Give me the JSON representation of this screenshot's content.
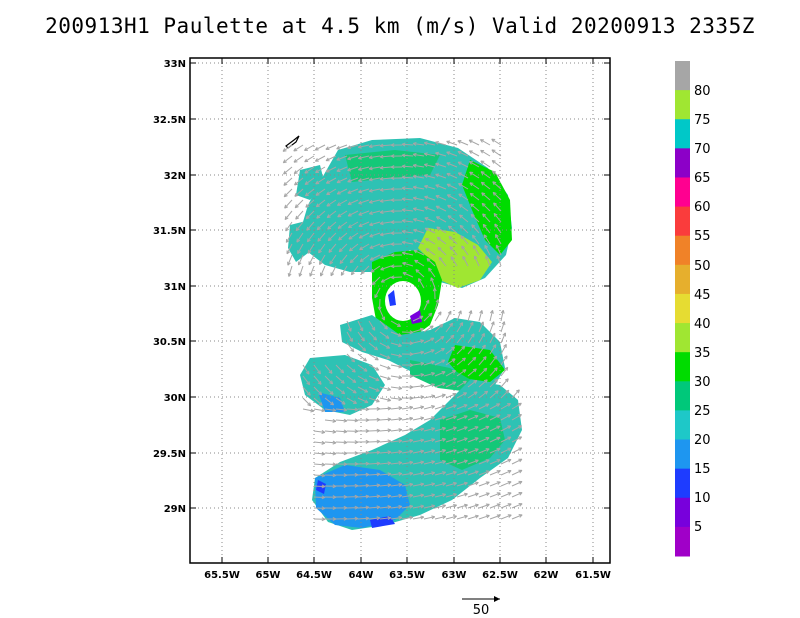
{
  "title": "200913H1 Paulette at 4.5 km (m/s) Valid 20200913 2335Z",
  "map": {
    "lat_ticks": [
      "33N",
      "32.5N",
      "32N",
      "31.5N",
      "31N",
      "30.5N",
      "30N",
      "29.5N",
      "29N"
    ],
    "lon_ticks": [
      "65.5W",
      "65W",
      "64.5W",
      "64W",
      "63.5W",
      "63W",
      "62.5W",
      "62W",
      "61.5W"
    ],
    "grid": true,
    "storm_center": {
      "lon": -63.45,
      "lat": 30.85
    }
  },
  "colorbar": {
    "labels": [
      "80",
      "75",
      "70",
      "65",
      "60",
      "55",
      "50",
      "45",
      "40",
      "35",
      "30",
      "25",
      "20",
      "15",
      "10",
      "5"
    ],
    "colors": [
      "#a6a6a6",
      "#a0e632",
      "#00c8c8",
      "#8c00c8",
      "#ff0090",
      "#fa3c3c",
      "#f08228",
      "#e6af2d",
      "#e6dc32",
      "#a0e632",
      "#00dc00",
      "#00c87a",
      "#1ec8c8",
      "#1e96f0",
      "#1e3cff",
      "#7800dc",
      "#a000c8"
    ]
  },
  "reference_vector": {
    "label": "50"
  },
  "palette": {
    "teal": "#2ec2b4",
    "green": "#00dc00",
    "lightgreen": "#a0e632",
    "seagreen": "#14c878",
    "skyblue": "#1e96f0",
    "blue": "#1e3cff",
    "purple": "#7800dc",
    "arrow": "#a6a6a6"
  }
}
